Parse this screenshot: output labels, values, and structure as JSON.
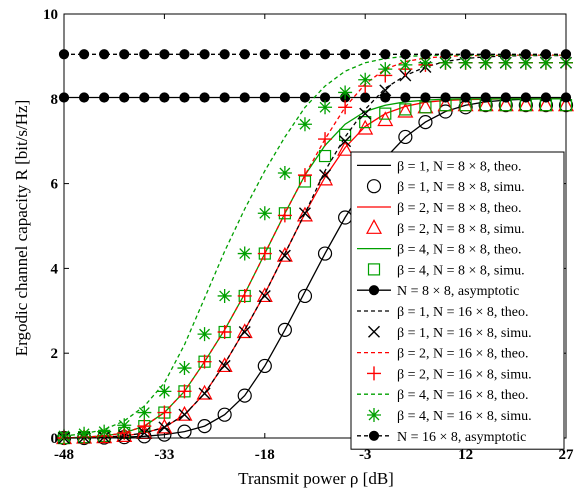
{
  "chart_data": {
    "type": "line",
    "xlabel": "Transmit power ρ [dB]",
    "ylabel": "Ergodic channel capacity R [bit/s/Hz]",
    "xlim": [
      -48,
      27
    ],
    "ylim": [
      0,
      10
    ],
    "xticks": [
      "-48",
      "-33",
      "-18",
      "-3",
      "12",
      "27"
    ],
    "yticks": [
      "0",
      "2",
      "4",
      "6",
      "8",
      "10"
    ],
    "grid": false,
    "legend_position": "right",
    "series": [
      {
        "name": "β = 1, N = 8 × 8, theo.",
        "color": "#000000",
        "dash": "solid",
        "marker": "none",
        "x": [
          -48,
          -45,
          -42,
          -39,
          -36,
          -33,
          -30,
          -27,
          -24,
          -21,
          -18,
          -15,
          -12,
          -9,
          -6,
          -3,
          0,
          3,
          6,
          9,
          12,
          15,
          18,
          21,
          24,
          27
        ],
        "y": [
          0.0,
          0.0,
          0.01,
          0.02,
          0.04,
          0.08,
          0.15,
          0.28,
          0.55,
          1.0,
          1.7,
          2.55,
          3.45,
          4.35,
          5.2,
          5.95,
          6.6,
          7.1,
          7.45,
          7.7,
          7.85,
          7.93,
          7.97,
          7.99,
          8.0,
          8.0
        ]
      },
      {
        "name": "β = 1, N = 8 × 8, simu.",
        "color": "#000000",
        "dash": "none",
        "marker": "circle",
        "x": [
          -48,
          -45,
          -42,
          -39,
          -36,
          -33,
          -30,
          -27,
          -24,
          -21,
          -18,
          -15,
          -12,
          -9,
          -6,
          -3,
          0,
          3,
          6,
          9,
          12,
          15,
          18,
          21,
          24,
          27
        ],
        "y": [
          0.0,
          0.0,
          0.01,
          0.02,
          0.04,
          0.08,
          0.15,
          0.28,
          0.55,
          1.0,
          1.7,
          2.55,
          3.35,
          4.35,
          5.2,
          5.95,
          6.5,
          7.1,
          7.45,
          7.7,
          7.8,
          7.85,
          7.85,
          7.85,
          7.85,
          7.85
        ]
      },
      {
        "name": "β = 2, N = 8 × 8, theo.",
        "color": "#ff0000",
        "dash": "solid",
        "marker": "none",
        "x": [
          -48,
          -45,
          -42,
          -39,
          -36,
          -33,
          -30,
          -27,
          -24,
          -21,
          -18,
          -15,
          -12,
          -9,
          -6,
          -3,
          0,
          3,
          6,
          9,
          12,
          15,
          18,
          21,
          24,
          27
        ],
        "y": [
          0.0,
          0.01,
          0.02,
          0.05,
          0.12,
          0.25,
          0.55,
          1.05,
          1.75,
          2.55,
          3.4,
          4.35,
          5.3,
          6.15,
          6.85,
          7.35,
          7.65,
          7.82,
          7.92,
          7.96,
          7.98,
          7.99,
          8.0,
          8.0,
          8.0,
          8.0
        ]
      },
      {
        "name": "β = 2, N = 8 × 8, simu.",
        "color": "#ff0000",
        "dash": "none",
        "marker": "triangle",
        "x": [
          -48,
          -45,
          -42,
          -39,
          -36,
          -33,
          -30,
          -27,
          -24,
          -21,
          -18,
          -15,
          -12,
          -9,
          -6,
          -3,
          0,
          3,
          6,
          9,
          12,
          15,
          18,
          21,
          24,
          27
        ],
        "y": [
          0.0,
          0.01,
          0.02,
          0.05,
          0.12,
          0.25,
          0.55,
          1.05,
          1.7,
          2.5,
          3.35,
          4.3,
          5.25,
          6.1,
          6.8,
          7.3,
          7.5,
          7.7,
          7.8,
          7.85,
          7.85,
          7.85,
          7.85,
          7.85,
          7.85,
          7.85
        ]
      },
      {
        "name": "β = 4, N = 8 × 8, theo.",
        "color": "#00a000",
        "dash": "solid",
        "marker": "none",
        "x": [
          -48,
          -45,
          -42,
          -39,
          -36,
          -33,
          -30,
          -27,
          -24,
          -21,
          -18,
          -15,
          -12,
          -9,
          -6,
          -3,
          0,
          3,
          6,
          9,
          12,
          15,
          18,
          21,
          24,
          27
        ],
        "y": [
          0.0,
          0.02,
          0.05,
          0.12,
          0.28,
          0.6,
          1.1,
          1.8,
          2.55,
          3.4,
          4.35,
          5.3,
          6.2,
          6.9,
          7.4,
          7.7,
          7.85,
          7.93,
          7.97,
          7.99,
          8.0,
          8.0,
          8.0,
          8.0,
          8.0,
          8.0
        ]
      },
      {
        "name": "β = 4, N = 8 × 8, simu.",
        "color": "#00a000",
        "dash": "none",
        "marker": "square",
        "x": [
          -48,
          -45,
          -42,
          -39,
          -36,
          -33,
          -30,
          -27,
          -24,
          -21,
          -18,
          -15,
          -12,
          -9,
          -6,
          -3,
          0,
          3,
          6,
          9,
          12,
          15,
          18,
          21,
          24,
          27
        ],
        "y": [
          0.0,
          0.02,
          0.05,
          0.12,
          0.28,
          0.6,
          1.1,
          1.8,
          2.5,
          3.35,
          4.35,
          5.3,
          6.05,
          6.65,
          7.15,
          7.45,
          7.65,
          7.75,
          7.8,
          7.85,
          7.85,
          7.85,
          7.85,
          7.85,
          7.85,
          7.85
        ]
      },
      {
        "name": "N = 8 × 8, asymptotic",
        "color": "#000000",
        "dash": "solid",
        "marker": "dot",
        "x": [
          -48,
          -45,
          -42,
          -39,
          -36,
          -33,
          -30,
          -27,
          -24,
          -21,
          -18,
          -15,
          -12,
          -9,
          -6,
          -3,
          0,
          3,
          6,
          9,
          12,
          15,
          18,
          21,
          24,
          27
        ],
        "y": [
          8.03,
          8.03,
          8.03,
          8.03,
          8.03,
          8.03,
          8.03,
          8.03,
          8.03,
          8.03,
          8.03,
          8.03,
          8.03,
          8.03,
          8.03,
          8.03,
          8.03,
          8.03,
          8.03,
          8.03,
          8.03,
          8.03,
          8.03,
          8.03,
          8.03,
          8.03
        ]
      },
      {
        "name": "β = 1, N = 16 × 8, theo.",
        "color": "#000000",
        "dash": "dashed",
        "marker": "none",
        "x": [
          -48,
          -45,
          -42,
          -39,
          -36,
          -33,
          -30,
          -27,
          -24,
          -21,
          -18,
          -15,
          -12,
          -9,
          -6,
          -3,
          0,
          3,
          6,
          9,
          12,
          15,
          18,
          21,
          24,
          27
        ],
        "y": [
          0.0,
          0.01,
          0.02,
          0.05,
          0.12,
          0.25,
          0.55,
          1.05,
          1.75,
          2.55,
          3.4,
          4.35,
          5.3,
          6.3,
          7.1,
          7.75,
          8.25,
          8.55,
          8.75,
          8.88,
          8.95,
          8.99,
          9.01,
          9.02,
          9.02,
          9.02
        ]
      },
      {
        "name": "β = 1, N = 16 × 8, simu.",
        "color": "#000000",
        "dash": "none",
        "marker": "x",
        "x": [
          -48,
          -45,
          -42,
          -39,
          -36,
          -33,
          -30,
          -27,
          -24,
          -21,
          -18,
          -15,
          -12,
          -9,
          -6,
          -3,
          0,
          3,
          6,
          9,
          12,
          15,
          18,
          21,
          24,
          27
        ],
        "y": [
          0.0,
          0.01,
          0.02,
          0.05,
          0.12,
          0.25,
          0.55,
          1.05,
          1.7,
          2.5,
          3.35,
          4.3,
          5.3,
          6.2,
          7.0,
          7.65,
          8.2,
          8.55,
          8.75,
          8.85,
          8.85,
          8.85,
          8.85,
          8.85,
          8.85,
          8.85
        ]
      },
      {
        "name": "β = 2, N = 16 × 8, theo.",
        "color": "#ff0000",
        "dash": "dashed",
        "marker": "none",
        "x": [
          -48,
          -45,
          -42,
          -39,
          -36,
          -33,
          -30,
          -27,
          -24,
          -21,
          -18,
          -15,
          -12,
          -9,
          -6,
          -3,
          0,
          3,
          6,
          9,
          12,
          15,
          18,
          21,
          24,
          27
        ],
        "y": [
          0.0,
          0.02,
          0.05,
          0.12,
          0.28,
          0.6,
          1.1,
          1.8,
          2.55,
          3.4,
          4.35,
          5.3,
          6.2,
          7.05,
          7.8,
          8.35,
          8.7,
          8.88,
          8.96,
          9.0,
          9.02,
          9.02,
          9.03,
          9.03,
          9.03,
          9.03
        ]
      },
      {
        "name": "β = 2, N = 16 × 8, simu.",
        "color": "#ff0000",
        "dash": "none",
        "marker": "plus",
        "x": [
          -48,
          -45,
          -42,
          -39,
          -36,
          -33,
          -30,
          -27,
          -24,
          -21,
          -18,
          -15,
          -12,
          -9,
          -6,
          -3,
          0,
          3,
          6,
          9,
          12,
          15,
          18,
          21,
          24,
          27
        ],
        "y": [
          0.0,
          0.02,
          0.05,
          0.12,
          0.28,
          0.6,
          1.1,
          1.8,
          2.5,
          3.35,
          4.35,
          5.25,
          6.2,
          7.05,
          7.8,
          8.3,
          8.55,
          8.7,
          8.8,
          8.85,
          8.85,
          8.85,
          8.85,
          8.85,
          8.85,
          8.85
        ]
      },
      {
        "name": "β = 4, N = 16 × 8, theo.",
        "color": "#00a000",
        "dash": "dashed",
        "marker": "none",
        "x": [
          -48,
          -45,
          -42,
          -39,
          -36,
          -33,
          -30,
          -27,
          -24,
          -21,
          -18,
          -15,
          -12,
          -9,
          -6,
          -3,
          0,
          3,
          6,
          9,
          12,
          15,
          18,
          21,
          24,
          27
        ],
        "y": [
          0.05,
          0.1,
          0.2,
          0.4,
          0.75,
          1.3,
          2.2,
          3.3,
          4.4,
          5.4,
          6.3,
          7.1,
          7.8,
          8.3,
          8.65,
          8.85,
          8.95,
          9.0,
          9.02,
          9.03,
          9.03,
          9.03,
          9.03,
          9.03,
          9.03,
          9.03
        ]
      },
      {
        "name": "β = 4, N = 16 × 8, simu.",
        "color": "#00a000",
        "dash": "none",
        "marker": "asterisk",
        "x": [
          -48,
          -45,
          -42,
          -39,
          -36,
          -33,
          -30,
          -27,
          -24,
          -21,
          -18,
          -15,
          -12,
          -9,
          -6,
          -3,
          0,
          3,
          6,
          9,
          12,
          15,
          18,
          21,
          24,
          27
        ],
        "y": [
          0.05,
          0.1,
          0.15,
          0.3,
          0.6,
          1.1,
          1.65,
          2.45,
          3.35,
          4.35,
          5.3,
          6.25,
          7.4,
          7.8,
          8.15,
          8.45,
          8.7,
          8.8,
          8.85,
          8.85,
          8.85,
          8.85,
          8.85,
          8.85,
          8.85,
          8.85
        ]
      },
      {
        "name": "N = 16 × 8, asymptotic",
        "color": "#000000",
        "dash": "dashed",
        "marker": "dot",
        "x": [
          -48,
          -45,
          -42,
          -39,
          -36,
          -33,
          -30,
          -27,
          -24,
          -21,
          -18,
          -15,
          -12,
          -9,
          -6,
          -3,
          0,
          3,
          6,
          9,
          12,
          15,
          18,
          21,
          24,
          27
        ],
        "y": [
          9.05,
          9.05,
          9.05,
          9.05,
          9.05,
          9.05,
          9.05,
          9.05,
          9.05,
          9.05,
          9.05,
          9.05,
          9.05,
          9.05,
          9.05,
          9.05,
          9.05,
          9.05,
          9.05,
          9.05,
          9.05,
          9.05,
          9.05,
          9.05,
          9.05,
          9.05
        ]
      }
    ]
  }
}
